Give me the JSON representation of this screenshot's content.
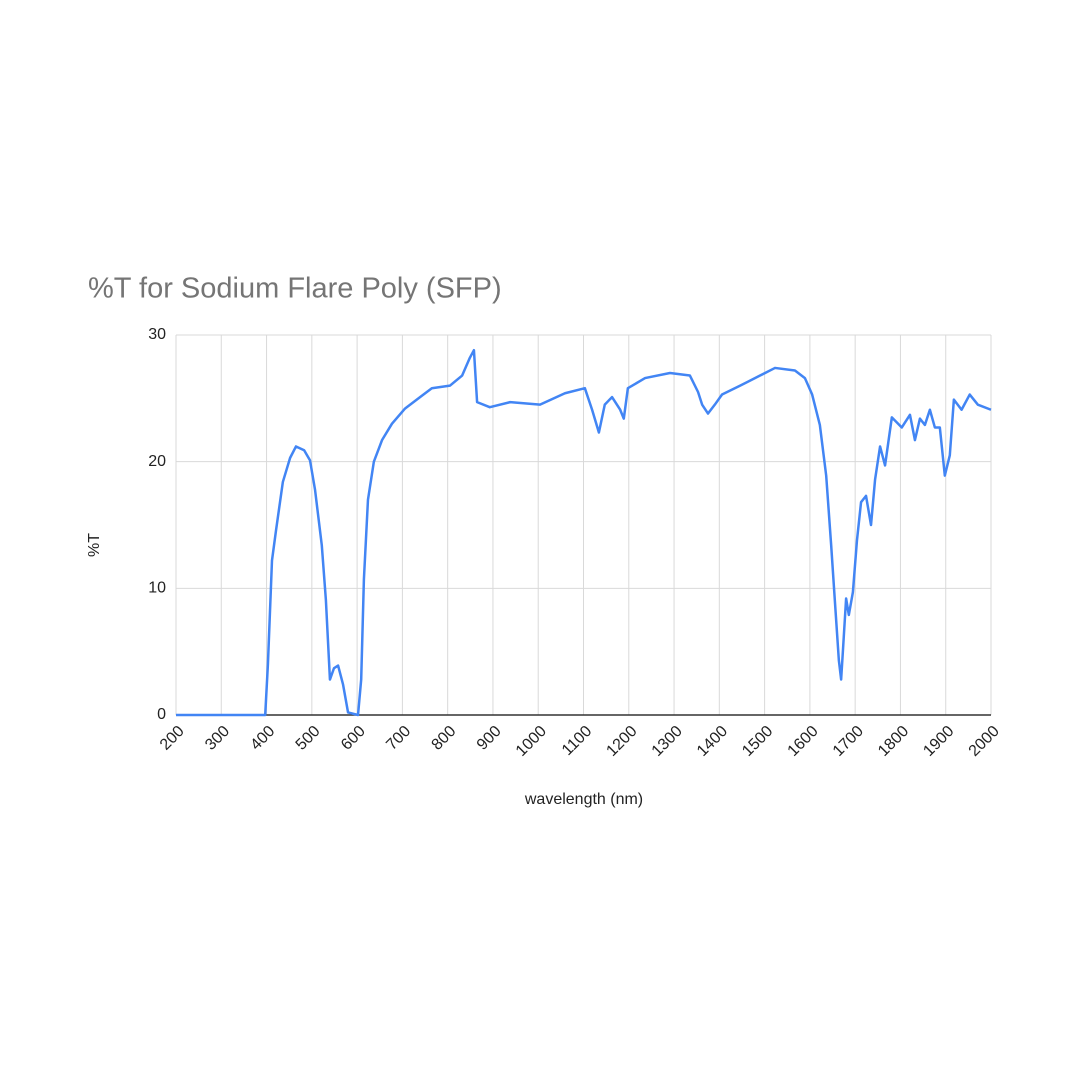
{
  "chart_data": {
    "type": "line",
    "title": "%T for Sodium Flare Poly (SFP)",
    "x_label": "wavelength (nm)",
    "y_label": "%T",
    "x": [
      200,
      300,
      390,
      397,
      403,
      412,
      421,
      436,
      452,
      465,
      483,
      496,
      507,
      522,
      531,
      540,
      549,
      558,
      569,
      580,
      602,
      609,
      615,
      624,
      637,
      655,
      677,
      706,
      739,
      765,
      805,
      832,
      849,
      858,
      865,
      893,
      938,
      1004,
      1059,
      1103,
      1119,
      1134,
      1147,
      1163,
      1181,
      1189,
      1198,
      1236,
      1291,
      1335,
      1353,
      1362,
      1375,
      1390,
      1406,
      1446,
      1490,
      1523,
      1567,
      1589,
      1605,
      1622,
      1636,
      1647,
      1655,
      1664,
      1669,
      1673,
      1680,
      1686,
      1695,
      1704,
      1713,
      1724,
      1735,
      1744,
      1755,
      1766,
      1781,
      1803,
      1821,
      1832,
      1843,
      1854,
      1865,
      1876,
      1887,
      1898,
      1909,
      1918,
      1935,
      1953,
      1971,
      2000
    ],
    "values": [
      0,
      0,
      0,
      0,
      4,
      12.2,
      14.6,
      18.4,
      20.3,
      21.2,
      20.9,
      20.1,
      17.8,
      13.4,
      9.1,
      2.8,
      3.7,
      3.9,
      2.4,
      0.2,
      0,
      2.8,
      10.7,
      17,
      20,
      21.7,
      23,
      24.2,
      25.1,
      25.8,
      26,
      26.8,
      28.2,
      28.8,
      24.7,
      24.3,
      24.7,
      24.5,
      25.4,
      25.8,
      24.1,
      22.3,
      24.5,
      25.1,
      24.1,
      23.4,
      25.8,
      26.6,
      27,
      26.8,
      25.5,
      24.5,
      23.8,
      24.5,
      25.3,
      26,
      26.8,
      27.4,
      27.2,
      26.6,
      25.3,
      22.9,
      18.9,
      13.4,
      9.1,
      4.3,
      2.8,
      5.1,
      9.2,
      7.9,
      9.7,
      13.8,
      16.8,
      17.3,
      15,
      18.6,
      21.2,
      19.7,
      23.5,
      22.7,
      23.7,
      21.7,
      23.4,
      22.9,
      24.1,
      22.7,
      22.7,
      18.9,
      20.5,
      24.9,
      24.1,
      25.3,
      24.5,
      24.1
    ],
    "color": "#4285f4",
    "xlim": [
      200,
      2000
    ],
    "xticks": [
      200,
      300,
      400,
      500,
      600,
      700,
      800,
      900,
      1000,
      1100,
      1200,
      1300,
      1400,
      1500,
      1600,
      1700,
      1800,
      1900,
      2000
    ],
    "ylim": [
      0,
      30
    ],
    "yticks": [
      0,
      10,
      20,
      30
    ],
    "grid": true
  }
}
